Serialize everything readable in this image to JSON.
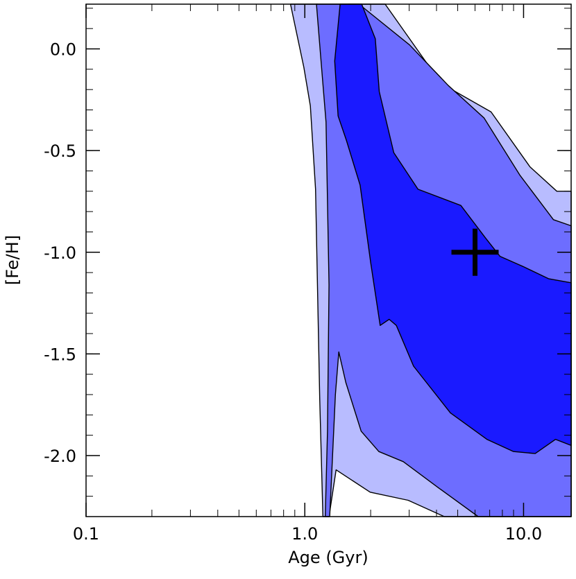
{
  "chart_data": {
    "type": "contour",
    "xlabel": "Age (Gyr)",
    "ylabel": "[Fe/H]",
    "xscale": "log",
    "xlim": [
      0.1,
      16.5
    ],
    "ylim": [
      -2.3,
      0.22
    ],
    "x_ticks": [
      {
        "value": 0.1,
        "label": "0.1"
      },
      {
        "value": 1.0,
        "label": "1.0"
      },
      {
        "value": 10.0,
        "label": "10.0"
      }
    ],
    "y_ticks": [
      {
        "value": 0.0,
        "label": "0.0"
      },
      {
        "value": -0.5,
        "label": "-0.5"
      },
      {
        "value": -1.0,
        "label": "-1.0"
      },
      {
        "value": -1.5,
        "label": "-1.5"
      },
      {
        "value": -2.0,
        "label": "-2.0"
      }
    ],
    "y_minor_step": 0.1,
    "marker": {
      "type": "plus",
      "age_gyr": 6.0,
      "feh": -1.0
    },
    "contour_levels": [
      {
        "name": "outer",
        "color": "#b8bcff",
        "outline": [
          [
            0.86,
            0.22
          ],
          [
            1.14,
            0.22
          ],
          [
            1.2,
            -0.04
          ],
          [
            1.32,
            -0.06
          ],
          [
            1.58,
            0.22
          ],
          [
            2.33,
            0.22
          ],
          [
            4.2,
            -0.17
          ],
          [
            7.1,
            -0.31
          ],
          [
            10.7,
            -0.58
          ],
          [
            14.2,
            -0.7
          ],
          [
            16.5,
            -0.7
          ],
          [
            16.5,
            -2.3
          ],
          [
            4.34,
            -2.3
          ],
          [
            2.97,
            -2.22
          ],
          [
            1.99,
            -2.18
          ],
          [
            1.39,
            -2.07
          ],
          [
            1.29,
            -2.3
          ],
          [
            1.21,
            -2.3
          ],
          [
            1.17,
            -1.72
          ],
          [
            1.12,
            -0.69
          ],
          [
            1.06,
            -0.28
          ],
          [
            0.99,
            -0.09
          ]
        ]
      },
      {
        "name": "middle",
        "color": "#6d6dff",
        "outline": [
          [
            1.13,
            0.22
          ],
          [
            1.44,
            0.22
          ],
          [
            1.77,
            0.22
          ],
          [
            3.01,
            0.02
          ],
          [
            4.53,
            -0.18
          ],
          [
            6.6,
            -0.34
          ],
          [
            9.6,
            -0.62
          ],
          [
            13.7,
            -0.84
          ],
          [
            16.5,
            -0.87
          ],
          [
            16.5,
            -2.3
          ],
          [
            6.2,
            -2.3
          ],
          [
            4.1,
            -2.16
          ],
          [
            2.82,
            -2.03
          ],
          [
            2.18,
            -1.98
          ],
          [
            1.81,
            -1.88
          ],
          [
            1.54,
            -1.64
          ],
          [
            1.43,
            -1.49
          ],
          [
            1.38,
            -1.7
          ],
          [
            1.3,
            -2.3
          ],
          [
            1.24,
            -2.3
          ],
          [
            1.27,
            -1.88
          ],
          [
            1.29,
            -1.16
          ],
          [
            1.25,
            -0.36
          ],
          [
            1.18,
            -0.03
          ]
        ]
      },
      {
        "name": "inner",
        "color": "#1a1aff",
        "outline": [
          [
            1.45,
            0.22
          ],
          [
            1.82,
            0.22
          ],
          [
            2.1,
            0.05
          ],
          [
            2.19,
            -0.21
          ],
          [
            2.55,
            -0.51
          ],
          [
            3.29,
            -0.69
          ],
          [
            5.17,
            -0.77
          ],
          [
            6.7,
            -0.93
          ],
          [
            7.8,
            -1.02
          ],
          [
            9.94,
            -1.07
          ],
          [
            13.0,
            -1.13
          ],
          [
            16.5,
            -1.15
          ],
          [
            16.5,
            -1.95
          ],
          [
            14.0,
            -1.92
          ],
          [
            11.3,
            -1.99
          ],
          [
            9.0,
            -1.98
          ],
          [
            6.8,
            -1.92
          ],
          [
            4.63,
            -1.79
          ],
          [
            3.14,
            -1.56
          ],
          [
            2.62,
            -1.36
          ],
          [
            2.43,
            -1.33
          ],
          [
            2.21,
            -1.36
          ],
          [
            2.0,
            -1.05
          ],
          [
            1.79,
            -0.67
          ],
          [
            1.55,
            -0.45
          ],
          [
            1.42,
            -0.33
          ],
          [
            1.37,
            -0.06
          ]
        ]
      }
    ]
  }
}
